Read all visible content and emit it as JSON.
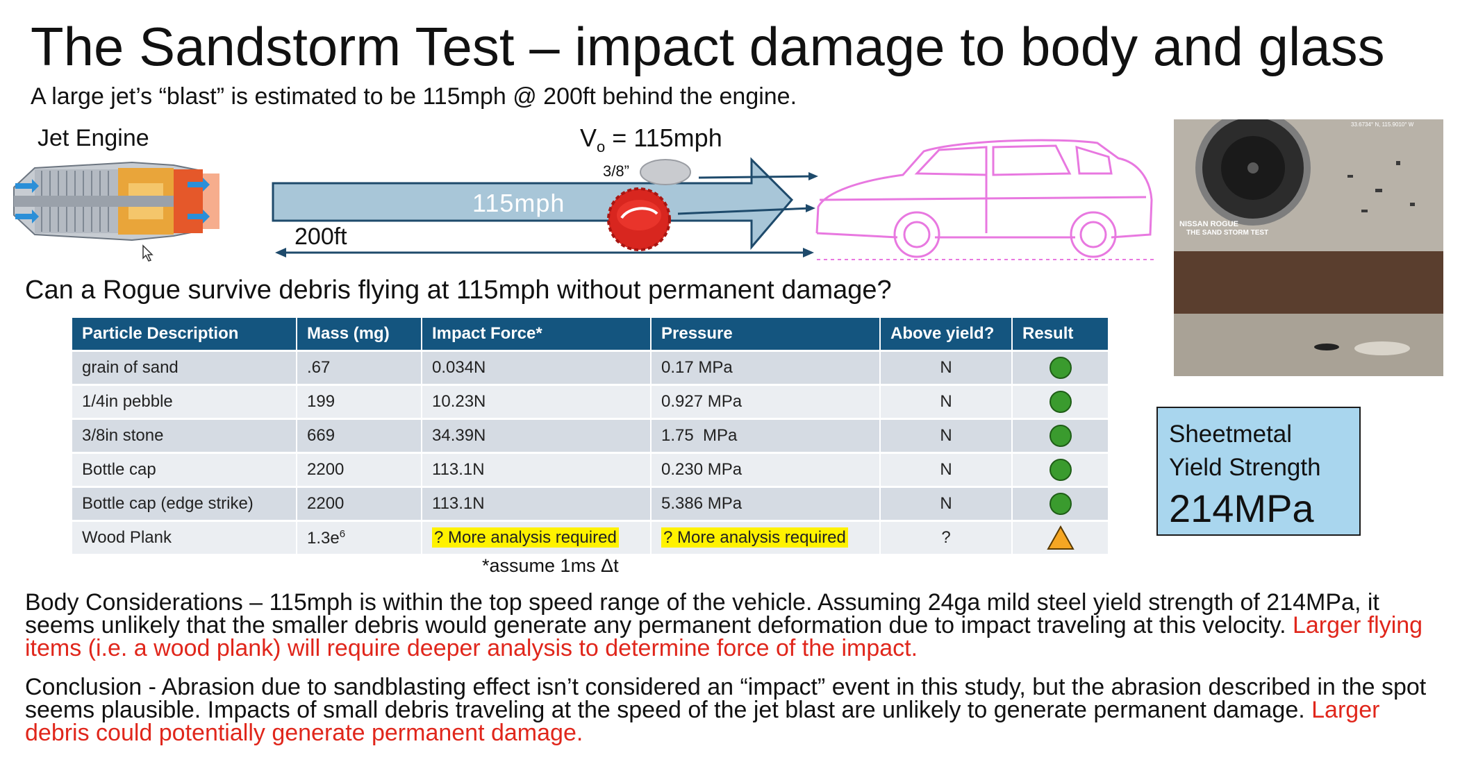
{
  "title": "The Sandstorm Test – impact damage to body and glass",
  "subtitle": "A large jet’s “blast” is estimated to be 115mph @ 200ft behind the engine.",
  "diagram": {
    "jet_label": "Jet Engine",
    "velocity_label": "V",
    "velocity_subscript": "o",
    "velocity_value": " = 115mph",
    "stone_label": "3/8”",
    "arrow_text": "115mph",
    "distance_label": "200ft",
    "colors": {
      "arrow_fill": "#a8c6d8",
      "arrow_stroke": "#1e4a6b",
      "car_outline": "#e878e0",
      "cap_red": "#d8261f"
    }
  },
  "question": "Can a Rogue survive debris flying at 115mph without permanent damage?",
  "table": {
    "headers": [
      "Particle Description",
      "Mass (mg)",
      "Impact Force*",
      "Pressure",
      "Above yield?",
      "Result"
    ],
    "rows": [
      {
        "desc": "grain of sand",
        "mass": ".67",
        "mass_exp": "",
        "force": "0.034N",
        "pressure": " 0.17 MPa",
        "above": "N",
        "result": "green-circle-icon"
      },
      {
        "desc": "1/4in pebble",
        "mass": "199",
        "mass_exp": "",
        "force": "10.23N",
        "pressure": "0.927 MPa",
        "above": "N",
        "result": "green-circle-icon"
      },
      {
        "desc": "3/8in stone",
        "mass": "669",
        "mass_exp": "",
        "force": "34.39N",
        "pressure": "1.75  MPa",
        "above": "N",
        "result": "green-circle-icon"
      },
      {
        "desc": "Bottle cap",
        "mass": "2200",
        "mass_exp": "",
        "force": "113.1N",
        "pressure": "0.230 MPa",
        "above": "N",
        "result": "green-circle-icon"
      },
      {
        "desc": "Bottle cap (edge strike)",
        "mass": "2200",
        "mass_exp": "",
        "force": "113.1N",
        "pressure": "5.386 MPa",
        "above": "N",
        "result": "green-circle-icon"
      },
      {
        "desc": "Wood Plank",
        "mass": "1.3e",
        "mass_exp": "6",
        "force": "? More analysis required",
        "pressure": "? More analysis required",
        "above": "?",
        "result": "warning-triangle-icon"
      }
    ],
    "colors": {
      "header": "#14557f",
      "row_odd": "#d5dbe3",
      "row_even": "#ebeef2",
      "green": "#3a9b2e",
      "warning": "#f5a623",
      "highlight": "#fff200"
    }
  },
  "footnote": "*assume 1ms Δt",
  "body": {
    "text": "Body Considerations – 115mph is within the top speed range of the vehicle. Assuming 24ga mild steel yield strength of 214MPa, it seems unlikely that the smaller debris would generate any permanent deformation due to impact traveling at this velocity. ",
    "highlight": "Larger flying items (i.e. a wood plank) will require deeper analysis to determine force of the impact."
  },
  "conclusion": {
    "text": "Conclusion - Abrasion due to sandblasting effect isn’t considered an “impact” event in this study, but the abrasion described in the spot seems plausible. Impacts of small debris traveling at the speed of the jet blast are unlikely to generate permanent damage. ",
    "highlight": "Larger debris could potentially generate permanent damage."
  },
  "photo": {
    "caption_line1": "NISSAN ROGUE",
    "caption_line2": "THE SAND STORM TEST",
    "coords": "33.6734° N, 115.9010° W"
  },
  "yield_box": {
    "label_line1": "Sheetmetal",
    "label_line2": "Yield Strength",
    "value": "214MPa"
  }
}
